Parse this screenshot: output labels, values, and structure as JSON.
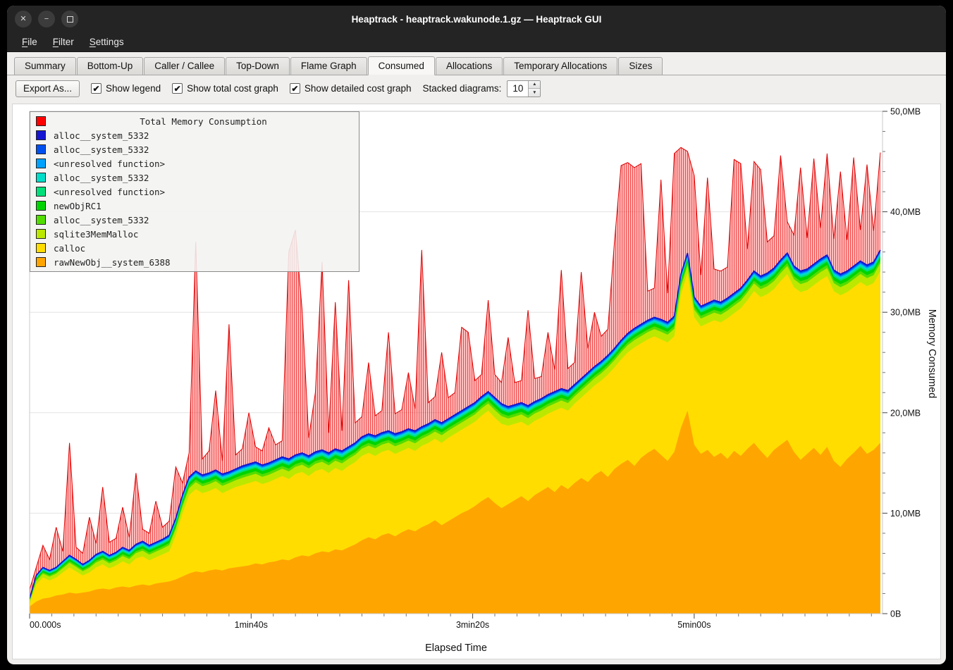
{
  "window": {
    "title": "Heaptrack - heaptrack.wakunode.1.gz — Heaptrack GUI",
    "controls": {
      "close": "✕",
      "minimize": "−",
      "maximize": ""
    }
  },
  "menubar": {
    "items": [
      "File",
      "Filter",
      "Settings"
    ]
  },
  "tabs": {
    "items": [
      "Summary",
      "Bottom-Up",
      "Caller / Callee",
      "Top-Down",
      "Flame Graph",
      "Consumed",
      "Allocations",
      "Temporary Allocations",
      "Sizes"
    ],
    "active": "Consumed"
  },
  "toolbar": {
    "export_label": "Export As...",
    "checkboxes": [
      {
        "label": "Show legend",
        "checked": true
      },
      {
        "label": "Show total cost graph",
        "checked": true
      },
      {
        "label": "Show detailed cost graph",
        "checked": true
      }
    ],
    "stacked_label": "Stacked diagrams:",
    "stacked_value": "10"
  },
  "chart_data": {
    "type": "area",
    "title": "Total Memory Consumption",
    "xlabel": "Elapsed Time",
    "ylabel": "Memory Consumed",
    "xlim": [
      0,
      385
    ],
    "ylim": [
      0,
      50
    ],
    "grid": "horizontal",
    "legend_position": "top-left",
    "xticks": [
      {
        "v": 0,
        "label": "00.000s"
      },
      {
        "v": 100,
        "label": "1min40s"
      },
      {
        "v": 200,
        "label": "3min20s"
      },
      {
        "v": 300,
        "label": "5min00s"
      }
    ],
    "yticks": [
      {
        "v": 0,
        "label": "0B"
      },
      {
        "v": 10,
        "label": "10,0MB"
      },
      {
        "v": 20,
        "label": "20,0MB"
      },
      {
        "v": 30,
        "label": "30,0MB"
      },
      {
        "v": 40,
        "label": "40,0MB"
      },
      {
        "v": 50,
        "label": "50,0MB"
      }
    ],
    "legend": [
      {
        "label": "Total Memory Consumption",
        "color": "#ff0000",
        "title": true
      },
      {
        "label": "alloc__system_5332",
        "color": "#1616d2"
      },
      {
        "label": "alloc__system_5332",
        "color": "#0050f0"
      },
      {
        "label": "<unresolved function>",
        "color": "#00a2ff"
      },
      {
        "label": "alloc__system_5332",
        "color": "#00ddc8"
      },
      {
        "label": "<unresolved function>",
        "color": "#00e07a"
      },
      {
        "label": "newObjRC1",
        "color": "#00d400"
      },
      {
        "label": "alloc__system_5332",
        "color": "#52dc00"
      },
      {
        "label": "sqlite3MemMalloc",
        "color": "#bce800"
      },
      {
        "label": "calloc",
        "color": "#ffdd00"
      },
      {
        "label": "rawNewObj__system_6388",
        "color": "#ffa500"
      }
    ],
    "colors": {
      "yellow": "#ffdd00",
      "orange": "#ffa500",
      "total_stroke": "#e00000",
      "base_stroke": "#1414cc",
      "grid": "#e3e3e3",
      "frame": "#c9c9c9"
    },
    "band_fractions": [
      {
        "name": "sqlite3MemMalloc",
        "color": "#bce800",
        "f": 0.38
      },
      {
        "name": "alloc__system_5332",
        "color": "#52dc00",
        "f": 0.14
      },
      {
        "name": "newObjRC1",
        "color": "#00d400",
        "f": 0.16
      },
      {
        "name": "<unresolved function>",
        "color": "#00e07a",
        "f": 0.08
      },
      {
        "name": "alloc__system_5332",
        "color": "#00ddc8",
        "f": 0.08
      },
      {
        "name": "<unresolved function>",
        "color": "#00a2ff",
        "f": 0.06
      },
      {
        "name": "alloc__system_5332",
        "color": "#0050f0",
        "f": 0.06
      },
      {
        "name": "alloc__system_5332",
        "color": "#1616d2",
        "f": 0.04
      }
    ],
    "x": [
      0,
      3,
      6,
      9,
      12,
      15,
      18,
      21,
      24,
      27,
      30,
      33,
      36,
      39,
      42,
      45,
      48,
      51,
      54,
      57,
      60,
      63,
      66,
      69,
      72,
      75,
      78,
      81,
      84,
      87,
      90,
      93,
      96,
      99,
      102,
      105,
      108,
      111,
      114,
      117,
      120,
      123,
      126,
      129,
      132,
      135,
      138,
      141,
      144,
      147,
      150,
      153,
      156,
      159,
      162,
      165,
      168,
      171,
      174,
      177,
      180,
      183,
      186,
      189,
      192,
      195,
      198,
      201,
      204,
      207,
      210,
      213,
      216,
      219,
      222,
      225,
      228,
      231,
      234,
      237,
      240,
      243,
      246,
      249,
      252,
      255,
      258,
      261,
      264,
      267,
      270,
      273,
      276,
      279,
      282,
      285,
      288,
      291,
      294,
      297,
      300,
      303,
      306,
      309,
      312,
      315,
      318,
      321,
      324,
      327,
      330,
      333,
      336,
      339,
      342,
      345,
      348,
      351,
      354,
      357,
      360,
      363,
      366,
      369,
      372,
      375,
      378,
      381,
      384
    ],
    "stack": {
      "orange": [
        0.7,
        1.2,
        1.5,
        1.6,
        1.8,
        1.9,
        2.1,
        2.0,
        2.1,
        2.2,
        2.4,
        2.5,
        2.4,
        2.6,
        2.7,
        2.6,
        2.8,
        2.9,
        2.8,
        3.0,
        3.1,
        3.2,
        3.4,
        3.7,
        4.0,
        4.2,
        4.1,
        4.3,
        4.4,
        4.3,
        4.5,
        4.6,
        4.7,
        4.8,
        5.0,
        4.9,
        5.1,
        5.2,
        5.4,
        5.3,
        5.6,
        5.8,
        5.7,
        6.0,
        6.2,
        6.1,
        6.4,
        6.3,
        6.6,
        6.9,
        7.3,
        7.6,
        7.4,
        7.8,
        8.0,
        7.7,
        8.1,
        8.4,
        8.2,
        8.6,
        8.9,
        9.3,
        8.8,
        9.2,
        9.6,
        10.0,
        10.3,
        10.7,
        11.2,
        11.6,
        11.0,
        10.5,
        10.9,
        11.3,
        11.7,
        11.2,
        11.8,
        12.2,
        12.6,
        12.1,
        12.8,
        12.4,
        13.0,
        13.5,
        13.1,
        13.8,
        14.2,
        13.6,
        14.4,
        14.9,
        15.3,
        14.7,
        15.5,
        16.0,
        16.4,
        15.8,
        15.2,
        16.1,
        18.5,
        20.2,
        16.8,
        15.9,
        16.3,
        15.6,
        16.0,
        15.4,
        16.2,
        15.7,
        16.4,
        17.0,
        16.2,
        15.5,
        16.3,
        16.8,
        17.3,
        16.1,
        15.3,
        15.9,
        16.5,
        15.8,
        16.6,
        15.2,
        14.6,
        15.4,
        16.0,
        16.7,
        15.9,
        16.3,
        17.0
      ],
      "yellow": [
        1.0,
        2.9,
        3.6,
        3.3,
        3.6,
        4.1,
        4.6,
        4.2,
        3.8,
        4.1,
        4.6,
        4.9,
        4.5,
        4.8,
        5.2,
        4.9,
        5.5,
        5.7,
        5.3,
        5.6,
        5.9,
        6.2,
        7.8,
        10.0,
        11.8,
        12.4,
        12.0,
        12.2,
        12.5,
        12.0,
        12.3,
        12.6,
        12.8,
        13.0,
        13.2,
        12.9,
        13.1,
        13.4,
        13.7,
        13.4,
        13.9,
        14.1,
        13.7,
        14.2,
        14.4,
        14.0,
        14.5,
        14.2,
        14.7,
        15.1,
        15.7,
        16.0,
        15.7,
        16.1,
        16.3,
        15.9,
        16.2,
        16.5,
        16.2,
        16.7,
        17.0,
        17.4,
        17.0,
        17.5,
        17.9,
        18.3,
        18.7,
        19.1,
        19.7,
        20.2,
        19.5,
        18.9,
        18.7,
        18.9,
        19.1,
        18.7,
        19.2,
        19.5,
        19.9,
        20.2,
        20.5,
        20.2,
        20.9,
        21.5,
        22.1,
        22.7,
        23.2,
        23.8,
        24.5,
        25.3,
        26.0,
        26.5,
        26.9,
        27.3,
        27.6,
        27.3,
        27.0,
        27.6,
        31.8,
        33.9,
        29.5,
        28.6,
        28.9,
        29.2,
        29.0,
        29.4,
        29.9,
        30.4,
        31.2,
        32.1,
        31.5,
        31.8,
        32.3,
        33.1,
        33.8,
        32.5,
        32.0,
        32.2,
        32.7,
        33.2,
        33.6,
        32.1,
        31.7,
        32.0,
        32.5,
        33.0,
        32.6,
        32.9,
        34.1
      ],
      "base": [
        1.5,
        3.8,
        4.6,
        4.3,
        4.6,
        5.2,
        5.8,
        5.4,
        4.9,
        5.3,
        5.9,
        6.2,
        5.8,
        6.1,
        6.6,
        6.3,
        6.9,
        7.2,
        6.8,
        7.1,
        7.4,
        7.8,
        9.5,
        11.8,
        13.6,
        14.2,
        13.8,
        14.0,
        14.3,
        13.9,
        14.1,
        14.4,
        14.7,
        14.9,
        15.1,
        14.8,
        15.0,
        15.3,
        15.6,
        15.4,
        15.8,
        16.0,
        15.7,
        16.1,
        16.3,
        16.0,
        16.4,
        16.2,
        16.6,
        17.0,
        17.6,
        17.9,
        17.7,
        18.0,
        18.2,
        17.9,
        18.1,
        18.4,
        18.2,
        18.6,
        18.9,
        19.3,
        19.0,
        19.4,
        19.8,
        20.2,
        20.6,
        21.0,
        21.6,
        22.1,
        21.5,
        20.9,
        20.6,
        20.8,
        21.0,
        20.7,
        21.1,
        21.4,
        21.8,
        22.1,
        22.4,
        22.2,
        22.8,
        23.4,
        24.0,
        24.6,
        25.1,
        25.7,
        26.4,
        27.2,
        27.9,
        28.4,
        28.8,
        29.2,
        29.5,
        29.3,
        29.0,
        29.6,
        33.8,
        35.9,
        31.5,
        30.6,
        30.9,
        31.2,
        31.0,
        31.4,
        31.9,
        32.4,
        33.2,
        34.1,
        33.6,
        33.9,
        34.4,
        35.2,
        35.9,
        34.6,
        34.1,
        34.3,
        34.8,
        35.3,
        35.7,
        34.2,
        33.8,
        34.1,
        34.6,
        35.1,
        34.7,
        35.0,
        36.2
      ],
      "total": [
        2.4,
        4.6,
        6.8,
        5.4,
        8.6,
        6.2,
        17.0,
        6.6,
        6.0,
        9.6,
        7.0,
        12.6,
        7.1,
        7.5,
        10.6,
        7.6,
        14.0,
        8.4,
        8.0,
        11.2,
        8.6,
        9.2,
        14.6,
        13.0,
        16.0,
        37.0,
        15.4,
        16.2,
        22.2,
        15.2,
        28.8,
        15.8,
        16.4,
        20.0,
        16.6,
        16.2,
        18.5,
        16.8,
        17.2,
        36.0,
        38.2,
        30.2,
        17.5,
        22.0,
        35.0,
        18.0,
        31.0,
        18.2,
        33.2,
        19.0,
        19.6,
        25.0,
        19.7,
        20.2,
        28.0,
        19.9,
        20.3,
        24.0,
        20.4,
        36.2,
        21.0,
        21.6,
        26.0,
        21.5,
        22.0,
        28.5,
        28.0,
        23.2,
        23.8,
        31.2,
        23.8,
        23.0,
        27.5,
        23.0,
        23.2,
        30.2,
        23.4,
        23.6,
        28.0,
        24.3,
        34.2,
        24.4,
        25.0,
        34.0,
        26.4,
        30.0,
        27.6,
        28.3,
        37.0,
        44.6,
        44.9,
        44.4,
        44.8,
        32.1,
        32.4,
        43.2,
        31.9,
        45.8,
        46.4,
        46.0,
        43.6,
        33.7,
        43.4,
        34.3,
        34.1,
        34.5,
        45.2,
        44.8,
        36.3,
        45.0,
        44.2,
        37.0,
        37.6,
        45.6,
        39.0,
        37.7,
        44.4,
        37.4,
        45.3,
        38.4,
        45.8,
        37.3,
        44.0,
        37.2,
        45.4,
        38.2,
        44.7,
        38.1,
        45.9
      ]
    }
  }
}
